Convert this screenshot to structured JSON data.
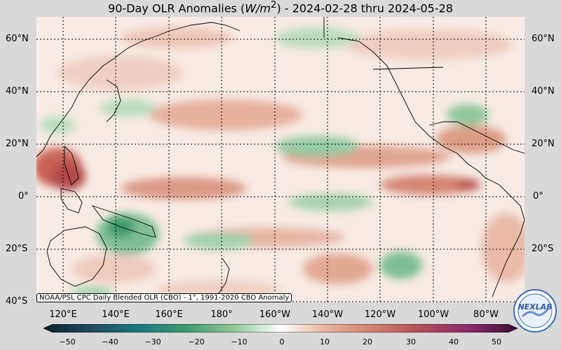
{
  "title": {
    "prefix": "90-Day OLR Anomalies (",
    "unit": "W/m",
    "sup": "2",
    "suffix": ") - 2024-02-28 thru 2024-05-28"
  },
  "lat_labels": [
    "60°N",
    "40°N",
    "20°N",
    "0°",
    "20°S",
    "40°S"
  ],
  "lon_labels": [
    "120°E",
    "140°E",
    "160°E",
    "180°",
    "160°W",
    "140°W",
    "120°W",
    "100°W",
    "80°W"
  ],
  "credit": "NOAA/PSL CPC Daily Blended OLR (CBO) - 1°, 1991-2020 CBO Anomaly",
  "logo_text": "NEXLAB",
  "colorbar": {
    "ticks": [
      "−50",
      "−40",
      "−30",
      "−20",
      "−10",
      "0",
      "10",
      "20",
      "30",
      "40",
      "50"
    ],
    "min": -50,
    "max": 50
  },
  "colors": {
    "pos_mid": "#d98b73",
    "pos_high": "#b24a48",
    "neg_mid": "#8fc79a",
    "neg_high": "#3d9a6d",
    "land": "#000000"
  }
}
